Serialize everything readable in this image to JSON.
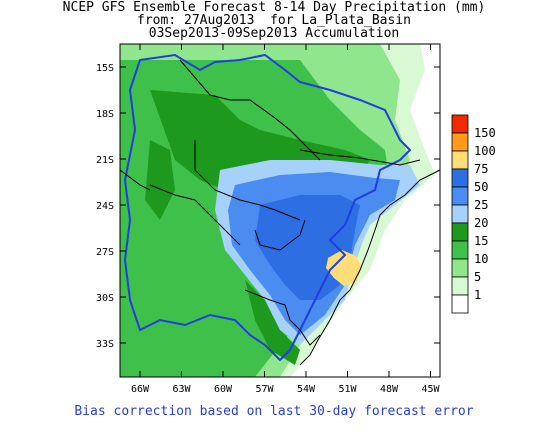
{
  "title": {
    "line1": "NCEP GFS Ensemble Forecast 8-14 Day Precipitation (mm)",
    "line2": "from: 27Aug2013  for La_Plata_Basin",
    "line3": "03Sep2013-09Sep2013 Accumulation"
  },
  "footer": "Bias correction based on last 30-day forecast error",
  "axes": {
    "lat_labels": [
      "15S",
      "18S",
      "21S",
      "24S",
      "27S",
      "30S",
      "33S"
    ],
    "lon_labels": [
      "66W",
      "63W",
      "60W",
      "57W",
      "54W",
      "51W",
      "48W",
      "45W"
    ]
  },
  "legend": {
    "items": [
      {
        "label": "150",
        "color": "#ee2a00"
      },
      {
        "label": "100",
        "color": "#ff9a1a"
      },
      {
        "label": "75",
        "color": "#ffdd77"
      },
      {
        "label": "50",
        "color": "#2e6ee3"
      },
      {
        "label": "25",
        "color": "#4a8cf0"
      },
      {
        "label": "20",
        "color": "#a6d1fa"
      },
      {
        "label": "15",
        "color": "#1d9a1d"
      },
      {
        "label": "10",
        "color": "#3fc04b"
      },
      {
        "label": "5",
        "color": "#8fe68c"
      },
      {
        "label": "1",
        "color": "#d9f9d4"
      },
      {
        "label": "",
        "color": "#ffffff"
      }
    ]
  },
  "colors": {
    "basin_outline": "#1f3fe0",
    "country_borders": "#000000",
    "footer_text": "#2a3fd0"
  }
}
